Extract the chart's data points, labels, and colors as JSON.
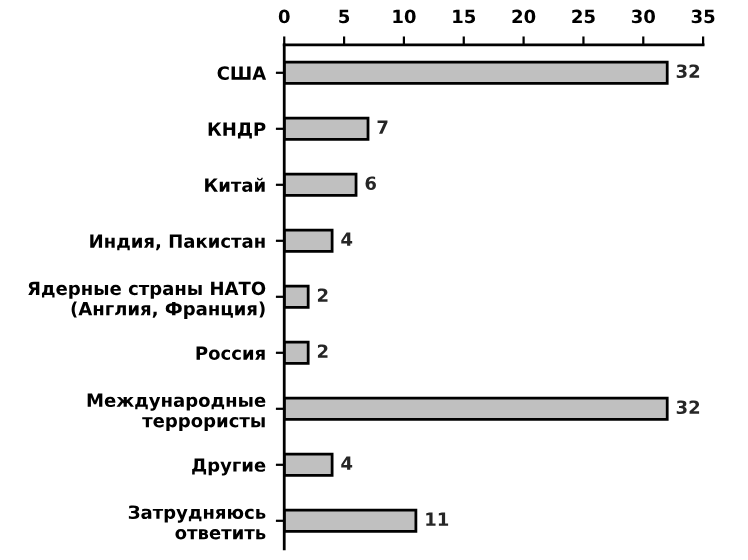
{
  "chart_data": {
    "type": "bar",
    "orientation": "horizontal",
    "categories": [
      "США",
      "КНДР",
      "Китай",
      "Индия, Пакистан",
      "Ядерные страны НАТО\n(Англия, Франция)",
      "Россия",
      "Международные\nтеррористы",
      "Другие",
      "Затрудняюсь\nответить"
    ],
    "values": [
      32,
      7,
      6,
      4,
      2,
      2,
      32,
      4,
      11
    ],
    "color": "#c0c0c0",
    "xlim": [
      0,
      35
    ],
    "xticks": [
      0,
      5,
      10,
      15,
      20,
      25,
      30,
      35
    ],
    "grid": false,
    "data_labels": true
  }
}
